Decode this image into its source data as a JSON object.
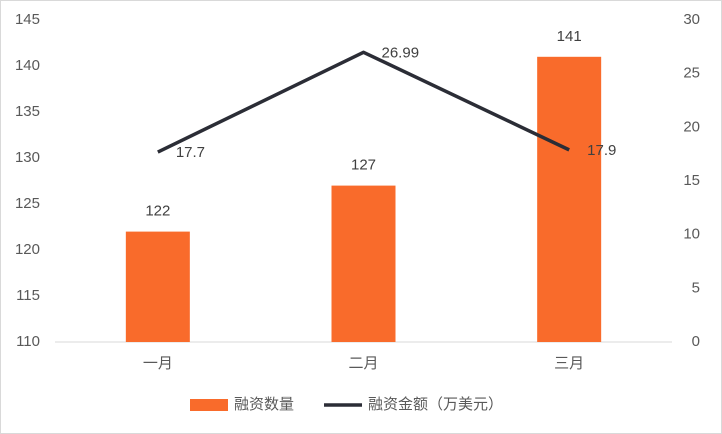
{
  "chart_data": {
    "type": "combo",
    "categories": [
      "一月",
      "二月",
      "三月"
    ],
    "series": [
      {
        "name": "融资数量",
        "type": "bar",
        "color": "#f96b2b",
        "values": [
          122,
          127,
          141
        ]
      },
      {
        "name": "融资金额（万美元）",
        "type": "line",
        "axis": "y2",
        "color": "#2b2d36",
        "values": [
          17.7,
          26.99,
          17.9
        ]
      }
    ],
    "ylim": [
      110,
      145
    ],
    "yticks": [
      110,
      115,
      120,
      125,
      130,
      135,
      140,
      145
    ],
    "y2lim": [
      0,
      30
    ],
    "y2ticks": [
      0,
      5,
      10,
      15,
      20,
      25,
      30
    ],
    "legend": "bottom"
  }
}
